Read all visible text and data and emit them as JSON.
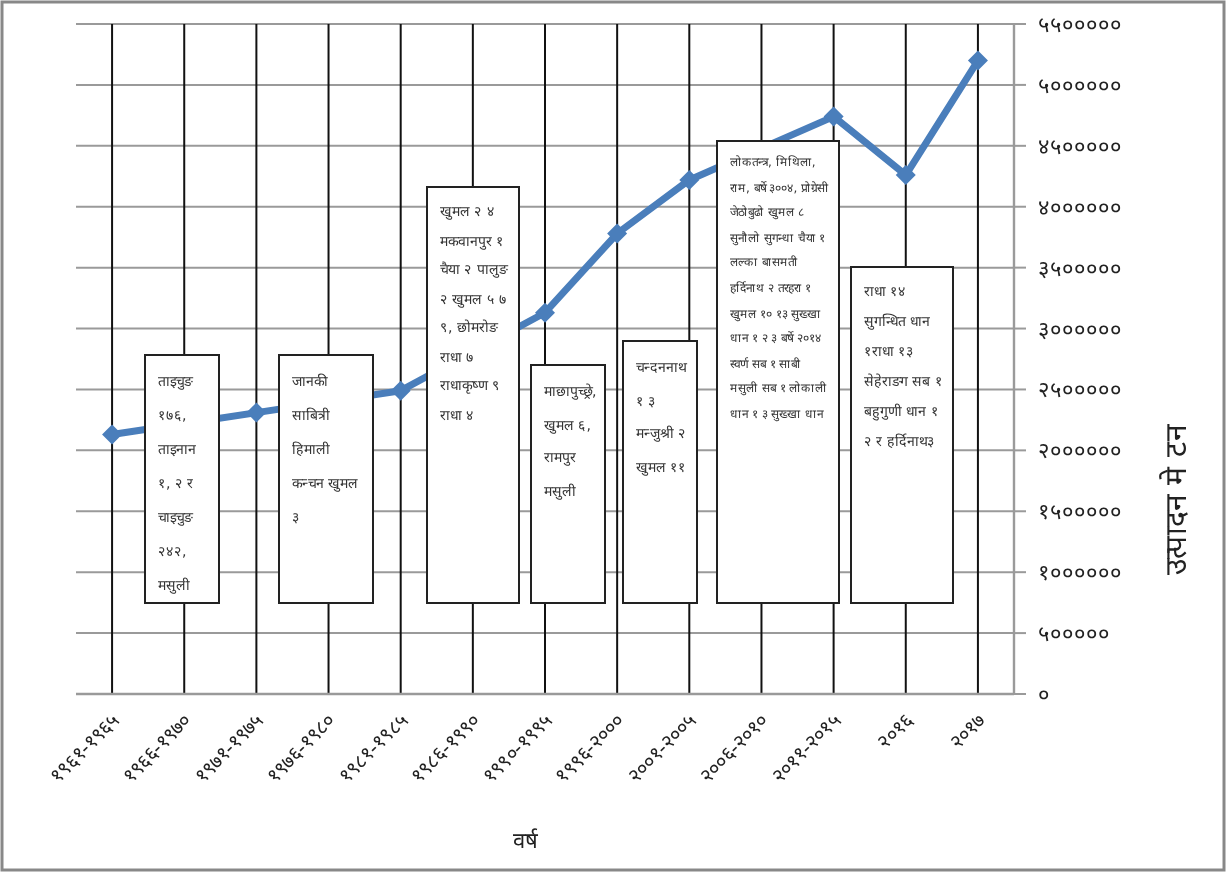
{
  "chart_data": {
    "type": "line",
    "categories": [
      "१९६१-१९६५",
      "१९६६-१९७०",
      "१९७१-१९७५",
      "१९७६-१९८०",
      "१९८१-१९८५",
      "१९८६-१९९०",
      "१९९०-१९९५",
      "१९९६-२०००",
      "२००१-२००५",
      "२००६-२०१०",
      "२०११-२०१५",
      "२०१६",
      "२०१७"
    ],
    "series": [
      {
        "color": "#4a7ebb",
        "values": [
          2130000,
          null,
          2310000,
          null,
          2490000,
          null,
          3130000,
          3780000,
          4220000,
          null,
          4740000,
          4260000,
          5200000
        ]
      }
    ],
    "marker": "diamond",
    "xlabel": "वर्ष",
    "ylabel": "उत्पादन मे टन",
    "ylim": [
      0,
      5500000
    ],
    "yticks": [
      {
        "value": 0,
        "label": "०"
      },
      {
        "value": 500000,
        "label": "५०००००"
      },
      {
        "value": 1000000,
        "label": "१००००००"
      },
      {
        "value": 1500000,
        "label": "१५०००००"
      },
      {
        "value": 2000000,
        "label": "२००००००"
      },
      {
        "value": 2500000,
        "label": "२५०००००"
      },
      {
        "value": 3000000,
        "label": "३००००००"
      },
      {
        "value": 3500000,
        "label": "३५०००००"
      },
      {
        "value": 4000000,
        "label": "४००००००"
      },
      {
        "value": 4500000,
        "label": "४५०००००"
      },
      {
        "value": 5000000,
        "label": "५००००००"
      },
      {
        "value": 5500000,
        "label": "५५०००००"
      }
    ],
    "grid": true,
    "annotations": [
      "ताइचुङ १७६, ताइनान १, २ र चाइचुङ २४२, मसुली",
      "जानकी साबित्री हिमाली कन्चन खुमल ३",
      "खुमल २ ४ मकवानपुर १ चैया २ पालुङ २ खुमल ५ ७ ९, छोमरोङ राधा ७ राधाकृष्ण ९ राधा ४",
      "माछापुच्छ्रे, खुमल ६, रामपुर मसुली",
      "चन्दननाथ १ ३ मन्जुश्री २ खुमल ११",
      "लोकतन्त्र, मिथिला, राम, बर्षे ३००४, प्रोग्रेसी जेठोबुढो खुमल ८ सुनौलो सुगन्धा चैया १ लल्का बासमती हर्दिनाथ २ तरहरा १ खुमल १० १३ सुख्खा धान १ २ ३ बर्षे २०१४ स्वर्ण सब १ साबी मसुली सब १ लोकाली धान १ ३ सुख्खा धान",
      "राधा १४ सुगन्धित धान १राधा १३ सेहेराङग सब १ बहुगुणी धान १ २ र हर्दिनाथ३"
    ]
  }
}
